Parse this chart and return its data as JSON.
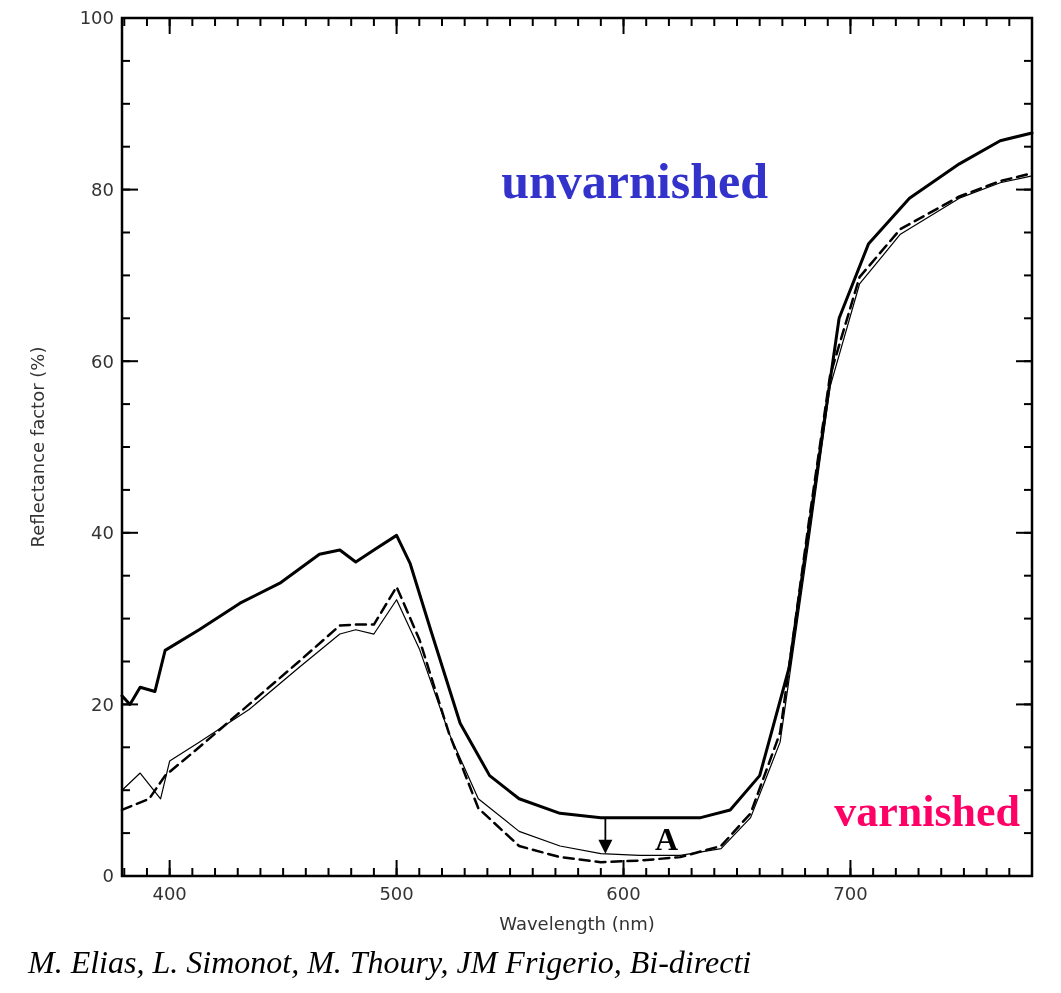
{
  "chart_data": {
    "type": "line",
    "xlabel": "Wavelength (nm)",
    "ylabel": "Reflectance factor (%)",
    "xlim": [
      379,
      780
    ],
    "ylim": [
      0,
      100
    ],
    "xticks": [
      400,
      500,
      600,
      700
    ],
    "yticks": [
      0,
      20,
      40,
      60,
      80,
      100
    ],
    "grid": false,
    "annotations": [
      "unvarnished",
      "varnished",
      "A",
      "M. Elias, L. Simonot, M. Thoury, JM Frigerio, Bi-directi"
    ],
    "series": [
      {
        "color": "#000000",
        "line_style": "solid",
        "x": [
          379,
          382.5,
          387,
          393.5,
          398,
          413,
          431,
          449,
          466,
          475,
          482,
          490,
          500,
          506,
          515,
          528,
          541,
          554,
          572,
          590,
          612,
          634,
          647,
          660,
          673,
          686,
          695,
          708,
          726,
          748,
          766,
          780
        ],
        "values": [
          21,
          20,
          22,
          21.5,
          26.3,
          28.7,
          31.8,
          34.2,
          37.5,
          38,
          36.6,
          38,
          39.7,
          36.4,
          28.7,
          17.8,
          11.7,
          9,
          7.3,
          6.8,
          6.8,
          6.8,
          7.7,
          11.7,
          24.3,
          48.5,
          65,
          73.7,
          79,
          83,
          85.7,
          86.6
        ]
      },
      {
        "color": "#000000",
        "line_style": "dashed",
        "x": [
          379,
          391,
          398,
          413,
          435,
          457,
          475,
          482,
          490,
          500,
          510,
          523,
          536,
          554,
          572,
          590,
          607,
          625,
          643,
          656,
          669,
          682,
          691,
          704,
          722,
          748,
          766,
          780
        ],
        "values": [
          7.7,
          9,
          11.7,
          15,
          20,
          25,
          29.2,
          29.3,
          29.3,
          33.7,
          27.6,
          16.7,
          7.9,
          3.5,
          2.2,
          1.6,
          1.8,
          2.2,
          3.5,
          7.3,
          16.7,
          41.9,
          58.3,
          69.8,
          75.4,
          79.2,
          81,
          81.9
        ]
      },
      {
        "color": "#000000",
        "line_style": "solid",
        "x": [
          379,
          387,
          396,
          400,
          413,
          435,
          457,
          475,
          482,
          490,
          500,
          510,
          523,
          536,
          554,
          572,
          590,
          607,
          625,
          643,
          656,
          669,
          682,
          691,
          704,
          722,
          748,
          766,
          780
        ],
        "values": [
          10,
          12,
          9,
          13.4,
          15.6,
          19.4,
          24.3,
          28.2,
          28.7,
          28.2,
          32.2,
          26.5,
          16.7,
          9,
          5.2,
          3.5,
          2.6,
          2.4,
          2.4,
          3.2,
          6.8,
          15.6,
          39.7,
          57,
          69,
          74.8,
          79,
          80.8,
          81.6
        ]
      }
    ]
  }
}
